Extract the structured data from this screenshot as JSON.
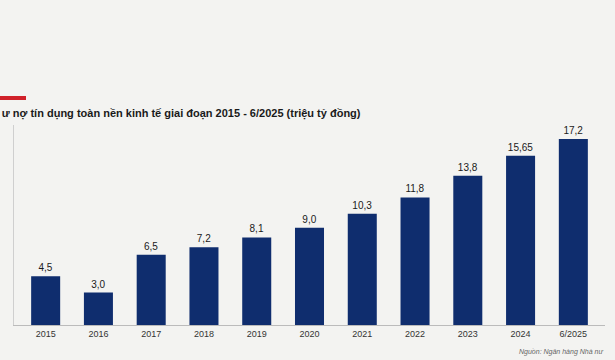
{
  "chart_data": {
    "type": "bar",
    "title": "ư nợ tín dụng toàn nền kinh tế giai đoạn 2015 - 6/2025 (triệu tỷ đồng)",
    "source": "Nguồn: Ngân hàng Nhà nư",
    "categories": [
      "2015",
      "2016",
      "2017",
      "2018",
      "2019",
      "2020",
      "2021",
      "2022",
      "2023",
      "2024",
      "6/2025"
    ],
    "values": [
      4.5,
      3.0,
      6.5,
      7.2,
      8.1,
      9.0,
      10.3,
      11.8,
      13.8,
      15.65,
      17.2
    ],
    "value_labels": [
      "4,5",
      "3,0",
      "6,5",
      "7,2",
      "8,1",
      "9,0",
      "10,3",
      "11,8",
      "13,8",
      "15,65",
      "17,2"
    ],
    "color": "#0f2d6e",
    "ylim": [
      0,
      18.5
    ],
    "yticks": [],
    "data_labels": true,
    "tick_labels": "x",
    "grid": false
  }
}
